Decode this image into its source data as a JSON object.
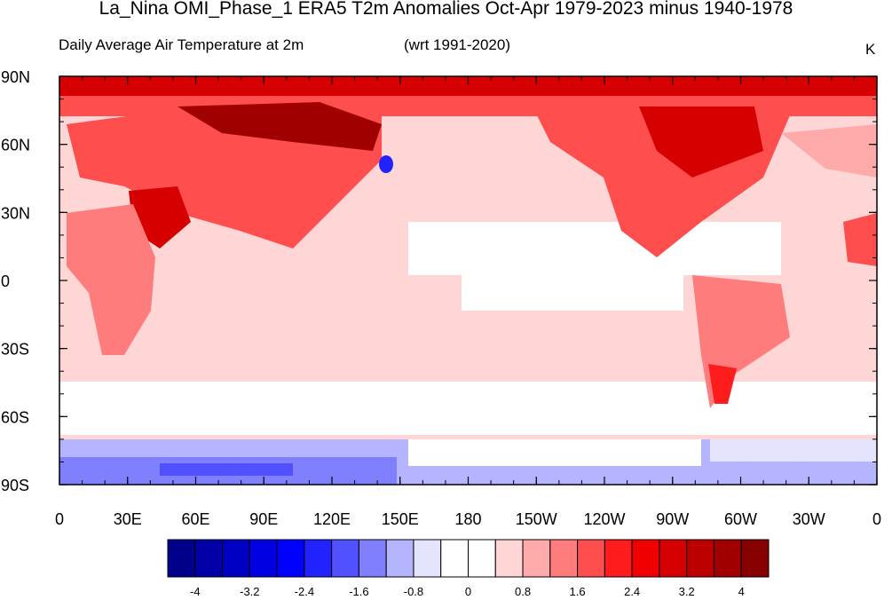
{
  "title": "La_Nina OMI_Phase_1 ERA5 T2m Anomalies Oct-Apr 1979-2023 minus 1940-1978",
  "subtitle_left": "Daily Average Air Temperature at 2m",
  "subtitle_center": "(wrt 1991-2020)",
  "units": "K",
  "map": {
    "projection": "cylindrical-equidistant",
    "center_longitude": 180,
    "lat_labels": [
      "90N",
      "60N",
      "30N",
      "0",
      "30S",
      "60S",
      "90S"
    ],
    "lon_labels": [
      "0",
      "30E",
      "60E",
      "90E",
      "120E",
      "150E",
      "180",
      "150W",
      "120W",
      "90W",
      "60W",
      "30W",
      "0"
    ]
  },
  "colorbar": {
    "labels": [
      "-4",
      "-3.2",
      "-2.4",
      "-1.6",
      "-0.8",
      "0",
      "0.8",
      "1.6",
      "2.4",
      "3.2",
      "4"
    ],
    "colors": [
      "#00008b",
      "#0000a6",
      "#0000c4",
      "#0000e2",
      "#0000ff",
      "#2222ff",
      "#5050ff",
      "#8080ff",
      "#b4b4ff",
      "#e4e4ff",
      "#ffffff",
      "#ffffff",
      "#ffd6d6",
      "#ffaaaa",
      "#ff7c7c",
      "#ff4e4e",
      "#ff1c1c",
      "#f00000",
      "#d60000",
      "#bc0000",
      "#a00000",
      "#860000"
    ]
  }
}
